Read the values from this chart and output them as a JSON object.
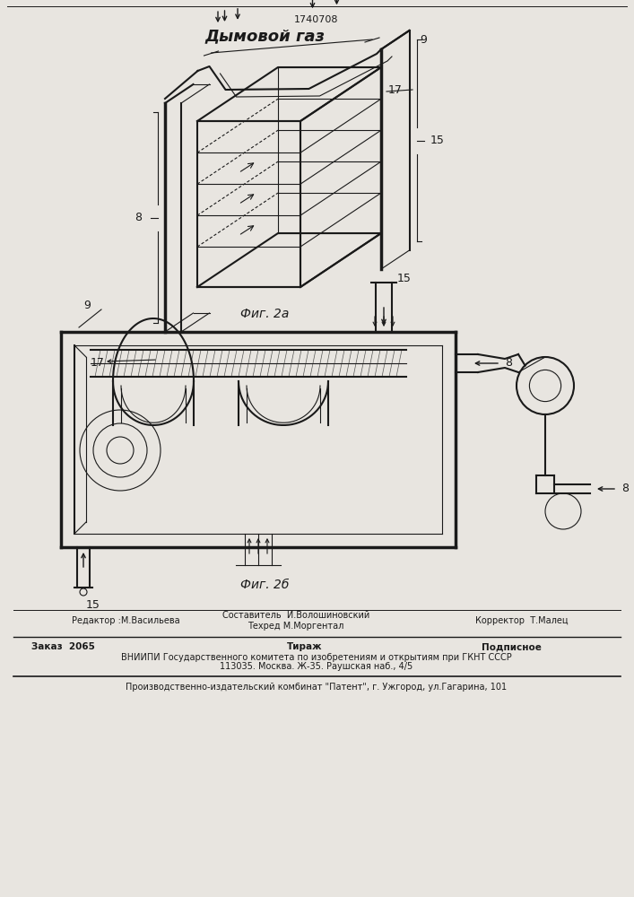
{
  "patent_number": "1740708",
  "title_label": "Дымовой газ",
  "fig2a_label": "Фиг. 2а",
  "fig2b_label": "Фиг. 2б",
  "editor_line": "Редактор :М.Васильева",
  "composer_line": "Составитель  И.Волошиновский",
  "techred_line": "Техред М.Моргентал",
  "corrector_line": "Корректор  Т.Малец",
  "order_line": "Заказ  2065",
  "tirazh_line": "Тираж",
  "podpisnoe_line": "Подписное",
  "vniiipi_line1": "ВНИИПИ Государственного комитета по изобретениям и открытиям при ГКНТ СССР",
  "vniiipi_line2": "113035. Москва. Ж-35. Раушская наб., 4/5",
  "factory_line": "Производственно-издательский комбинат \"Патент\", г. Ужгород, ул.Гагарина, 101",
  "bg_color": "#e8e5e0",
  "line_color": "#1a1a1a"
}
